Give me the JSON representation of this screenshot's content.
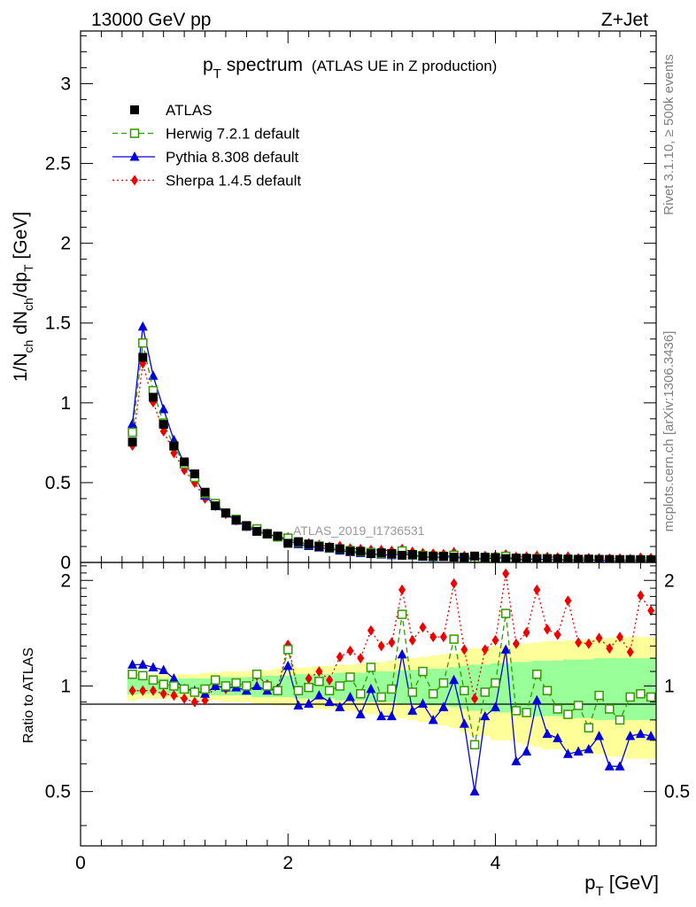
{
  "header": {
    "energy_label": "13000 GeV pp",
    "process_label": "Z+Jet",
    "analysis_id": "ATLAS_2019_I1736531",
    "rivet_label": "Rivet 3.1.10, ≥ 500k events",
    "mcplots_label": "mcplots.cern.ch [arXiv:1306.3436]"
  },
  "title": {
    "main": "p",
    "main_sub": "T",
    "main_rest": " spectrum",
    "aux": "(ATLAS UE in Z production)"
  },
  "axes": {
    "x_label": "p",
    "x_label_sub": "T",
    "x_label_rest": " [GeV]",
    "y_label_main": "1/N",
    "y_label_sub1": "ch",
    "y_label_mid": " dN",
    "y_label_sub2": "ch",
    "y_label_mid2": "/dp",
    "y_label_sub3": "T",
    "y_label_rest": " [GeV]",
    "ratio_label": "Ratio to ATLAS"
  },
  "legend": [
    {
      "label": "ATLAS",
      "color": "#000000",
      "marker": "square-filled",
      "line": "none"
    },
    {
      "label": "Herwig 7.2.1 default",
      "color": "#339900",
      "marker": "square-open",
      "line": "dashed"
    },
    {
      "label": "Pythia 8.308 default",
      "color": "#0000dd",
      "marker": "triangle",
      "line": "solid"
    },
    {
      "label": "Sherpa 1.4.5 default",
      "color": "#ee0000",
      "marker": "diamond",
      "line": "dotted"
    }
  ],
  "chart_data": {
    "type": "line",
    "title": "pT spectrum (ATLAS UE in Z production)",
    "xlabel": "pT [GeV]",
    "ylabel": "1/Nch dNch/dpT [GeV]",
    "xlim": [
      0,
      5.55
    ],
    "ylim": [
      0,
      3.33
    ],
    "x_ticks": [
      0,
      2,
      4
    ],
    "y_ticks": [
      0,
      0.5,
      1,
      1.5,
      2,
      2.5,
      3
    ],
    "ratio_ylim": [
      0.35,
      2.25
    ],
    "ratio_ticks": [
      0.5,
      1,
      2
    ],
    "band_colors": {
      "inner": "#99ff99",
      "outer": "#ffff99"
    },
    "x": [
      0.5,
      0.6,
      0.7,
      0.8,
      0.9,
      1.0,
      1.1,
      1.2,
      1.3,
      1.4,
      1.5,
      1.6,
      1.7,
      1.8,
      1.9,
      2.0,
      2.1,
      2.2,
      2.3,
      2.4,
      2.5,
      2.6,
      2.7,
      2.8,
      2.9,
      3.0,
      3.1,
      3.2,
      3.3,
      3.4,
      3.5,
      3.6,
      3.7,
      3.8,
      3.9,
      4.0,
      4.1,
      4.2,
      4.3,
      4.4,
      4.5,
      4.6,
      4.7,
      4.8,
      4.9,
      5.0,
      5.1,
      5.2,
      5.3,
      5.4,
      5.5
    ],
    "series": [
      {
        "name": "ATLAS",
        "values": [
          0.755,
          1.285,
          1.035,
          0.865,
          0.73,
          0.63,
          0.555,
          0.44,
          0.355,
          0.31,
          0.265,
          0.23,
          0.195,
          0.18,
          0.165,
          0.12,
          0.13,
          0.115,
          0.1,
          0.095,
          0.085,
          0.07,
          0.07,
          0.055,
          0.06,
          0.055,
          0.045,
          0.05,
          0.04,
          0.04,
          0.038,
          0.033,
          0.032,
          0.04,
          0.032,
          0.03,
          0.024,
          0.027,
          0.026,
          0.022,
          0.024,
          0.023,
          0.021,
          0.02,
          0.021,
          0.019,
          0.019,
          0.018,
          0.018,
          0.017,
          0.017
        ]
      },
      {
        "name": "Herwig 7.2.1 default",
        "ratio": [
          1.08,
          1.07,
          1.04,
          1.01,
          1.0,
          0.98,
          0.96,
          0.98,
          1.04,
          1.0,
          1.02,
          1.0,
          1.08,
          1.0,
          0.97,
          1.27,
          0.97,
          0.99,
          1.03,
          0.97,
          1.0,
          1.06,
          0.95,
          1.13,
          0.93,
          0.98,
          1.6,
          0.96,
          1.1,
          0.95,
          1.02,
          1.36,
          0.97,
          0.68,
          0.96,
          1.02,
          1.61,
          0.85,
          0.84,
          1.08,
          0.97,
          0.86,
          0.83,
          0.88,
          0.76,
          0.94,
          0.86,
          0.8,
          0.93,
          0.95,
          0.93
        ]
      },
      {
        "name": "Pythia 8.308 default",
        "ratio": [
          1.15,
          1.15,
          1.13,
          1.11,
          1.05,
          0.98,
          0.97,
          0.95,
          1.0,
          0.99,
          0.99,
          0.97,
          1.0,
          0.97,
          0.98,
          1.14,
          0.88,
          0.89,
          0.94,
          0.9,
          0.87,
          0.93,
          0.83,
          0.98,
          0.82,
          0.82,
          1.23,
          0.85,
          0.89,
          0.8,
          0.87,
          1.04,
          0.78,
          0.5,
          0.82,
          0.87,
          1.27,
          0.61,
          0.65,
          0.91,
          0.73,
          0.71,
          0.64,
          0.65,
          0.66,
          0.72,
          0.59,
          0.59,
          0.72,
          0.73,
          0.72
        ]
      },
      {
        "name": "Sherpa 1.4.5 default",
        "ratio": [
          0.97,
          0.97,
          0.97,
          0.95,
          0.94,
          0.92,
          0.9,
          0.91,
          1.0,
          0.98,
          1.0,
          0.99,
          1.07,
          1.01,
          0.98,
          1.31,
          0.97,
          1.05,
          1.1,
          1.04,
          1.21,
          1.26,
          1.2,
          1.44,
          1.3,
          1.33,
          1.88,
          1.35,
          1.47,
          1.38,
          1.38,
          1.96,
          1.27,
          0.92,
          1.27,
          1.35,
          2.09,
          1.32,
          1.42,
          1.88,
          1.45,
          1.4,
          1.75,
          1.33,
          1.32,
          1.37,
          1.28,
          1.38,
          1.25,
          1.81,
          1.64
        ]
      }
    ],
    "band_inner": [
      0.055,
      0.05,
      0.05,
      0.05,
      0.05,
      0.05,
      0.05,
      0.05,
      0.06,
      0.06,
      0.06,
      0.06,
      0.07,
      0.07,
      0.07,
      0.07,
      0.08,
      0.08,
      0.08,
      0.08,
      0.09,
      0.09,
      0.09,
      0.1,
      0.1,
      0.1,
      0.11,
      0.11,
      0.11,
      0.12,
      0.12,
      0.13,
      0.14,
      0.15,
      0.15,
      0.16,
      0.16,
      0.17,
      0.17,
      0.18,
      0.18,
      0.18,
      0.19,
      0.19,
      0.19,
      0.2,
      0.2,
      0.2,
      0.2,
      0.2,
      0.2
    ],
    "band_outer": [
      0.09,
      0.08,
      0.08,
      0.08,
      0.08,
      0.08,
      0.08,
      0.09,
      0.09,
      0.1,
      0.1,
      0.1,
      0.11,
      0.11,
      0.12,
      0.12,
      0.13,
      0.13,
      0.14,
      0.14,
      0.15,
      0.15,
      0.16,
      0.17,
      0.17,
      0.18,
      0.19,
      0.2,
      0.21,
      0.22,
      0.23,
      0.24,
      0.26,
      0.28,
      0.28,
      0.3,
      0.3,
      0.31,
      0.32,
      0.33,
      0.34,
      0.34,
      0.35,
      0.35,
      0.36,
      0.36,
      0.37,
      0.37,
      0.38,
      0.38,
      0.38
    ]
  }
}
